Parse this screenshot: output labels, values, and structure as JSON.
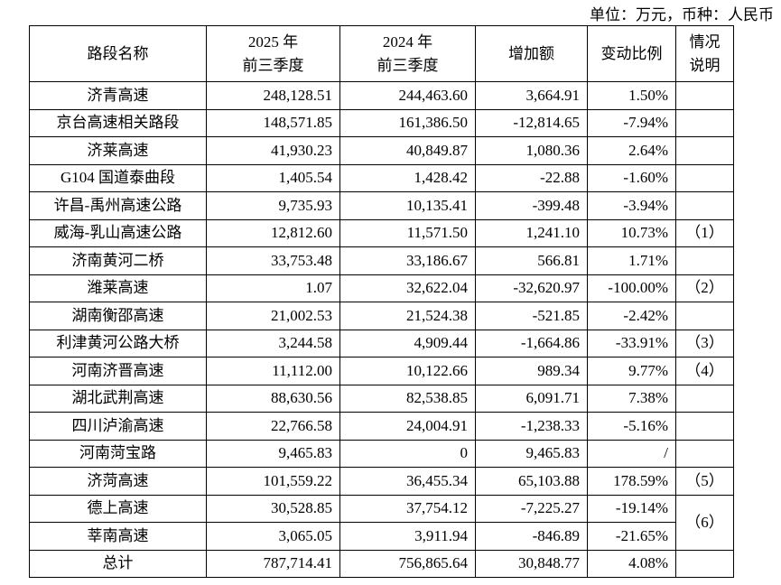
{
  "unit_note": "单位：万元，币种：人民币",
  "table": {
    "header": [
      "路段名称",
      "2025 年\n前三季度",
      "2024 年\n前三季度",
      "增加额",
      "变动比例",
      "情况\n说明"
    ],
    "rows": [
      [
        "济青高速",
        "248,128.51",
        "244,463.60",
        "3,664.91",
        "1.50%"
      ],
      [
        "京台高速相关路段",
        "148,571.85",
        "161,386.50",
        "-12,814.65",
        "-7.94%"
      ],
      [
        "济莱高速",
        "41,930.23",
        "40,849.87",
        "1,080.36",
        "2.64%"
      ],
      [
        "G104 国道泰曲段",
        "1,405.54",
        "1,428.42",
        "-22.88",
        "-1.60%"
      ],
      [
        "许昌-禹州高速公路",
        "9,735.93",
        "10,135.41",
        "-399.48",
        "-3.94%"
      ],
      [
        "威海-乳山高速公路",
        "12,812.60",
        "11,571.50",
        "1,241.10",
        "10.73%"
      ],
      [
        "济南黄河二桥",
        "33,753.48",
        "33,186.67",
        "566.81",
        "1.71%"
      ],
      [
        "潍莱高速",
        "1.07",
        "32,622.04",
        "-32,620.97",
        "-100.00%"
      ],
      [
        "湖南衡邵高速",
        "21,002.53",
        "21,524.38",
        "-521.85",
        "-2.42%"
      ],
      [
        "利津黄河公路大桥",
        "3,244.58",
        "4,909.44",
        "-1,664.86",
        "-33.91%"
      ],
      [
        "河南济晋高速",
        "11,112.00",
        "10,122.66",
        "989.34",
        "9.77%"
      ],
      [
        "湖北武荆高速",
        "88,630.56",
        "82,538.85",
        "6,091.71",
        "7.38%"
      ],
      [
        "四川泸渝高速",
        "22,766.58",
        "24,004.91",
        "-1,238.33",
        "-5.16%"
      ],
      [
        "河南菏宝路",
        "9,465.83",
        "0",
        "9,465.83",
        "/"
      ],
      [
        "济菏高速",
        "101,559.22",
        "36,455.34",
        "65,103.88",
        "178.59%"
      ],
      [
        "德上高速",
        "30,528.85",
        "37,754.12",
        "-7,225.27",
        "-19.14%"
      ],
      [
        "莘南高速",
        "3,065.05",
        "3,911.94",
        "-846.89",
        "-21.65%"
      ],
      [
        "总计",
        "787,714.41",
        "756,865.64",
        "30,848.77",
        "4.08%"
      ]
    ],
    "notes": [
      {
        "label": "（1）",
        "rows": [
          5
        ]
      },
      {
        "label": "（2）",
        "rows": [
          7
        ]
      },
      {
        "label": "（3）",
        "rows": [
          9
        ]
      },
      {
        "label": "（4）",
        "rows": [
          10
        ]
      },
      {
        "label": "（5）",
        "rows": [
          14
        ]
      },
      {
        "label": "（6）",
        "rows": [
          15,
          16
        ]
      }
    ]
  }
}
